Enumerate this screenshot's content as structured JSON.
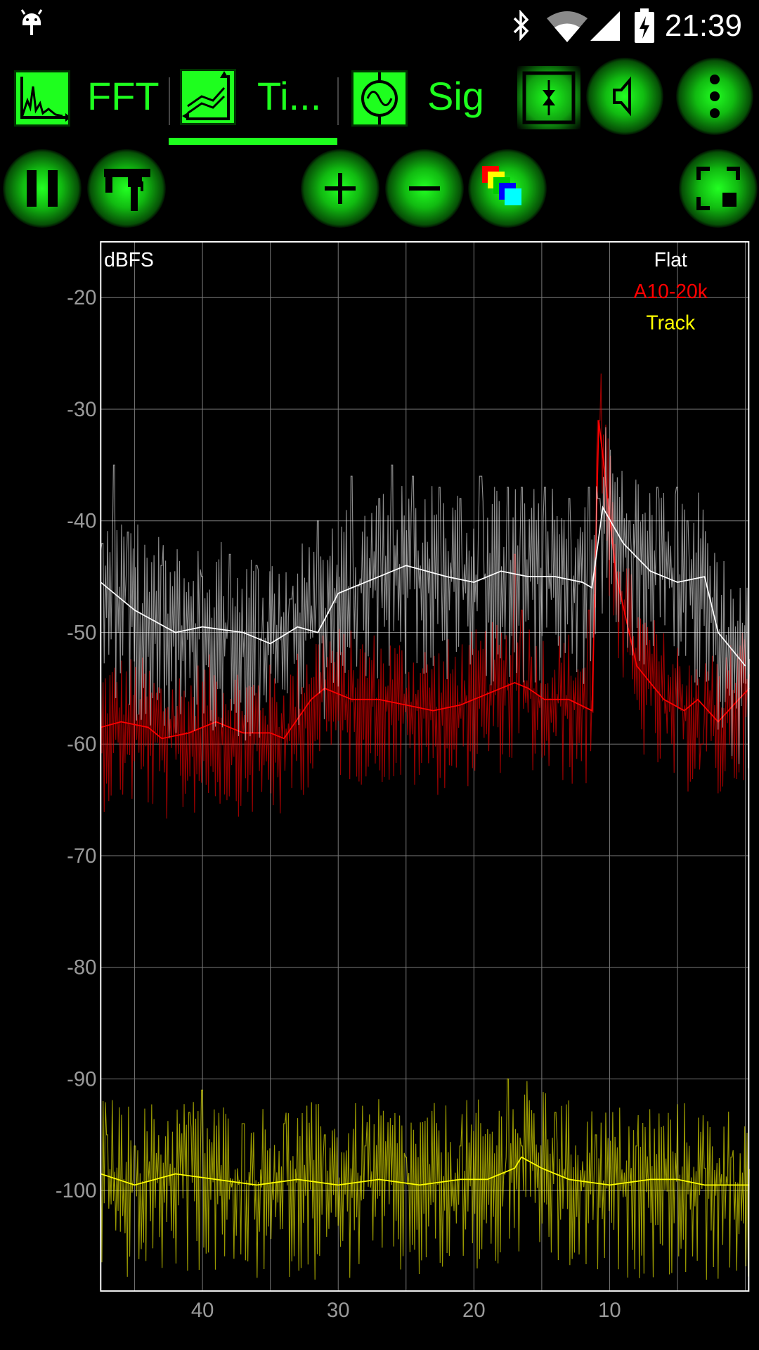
{
  "status_bar": {
    "time": "21:39",
    "icons": [
      "android-debug-icon",
      "bluetooth-icon",
      "wifi-icon",
      "signal-icon",
      "battery-charging-icon"
    ]
  },
  "tabs": [
    {
      "label": "FFT",
      "icon": "spectrum-icon"
    },
    {
      "label": "Ti...",
      "icon": "time-history-icon",
      "selected": true
    },
    {
      "label": "Sig",
      "icon": "signal-generator-icon"
    }
  ],
  "toolbar_icons": [
    "channel-swap-icon",
    "speaker-icon",
    "overflow-menu-icon"
  ],
  "controls": [
    "pause-icon",
    "caliper-icon",
    "zoom-in-icon",
    "zoom-out-icon",
    "color-palette-icon",
    "fullscreen-icon"
  ],
  "colors": {
    "accent": "#1eff1e",
    "flat_trace": "#ffffff",
    "a_weighted_trace": "#ff0000",
    "track_trace": "#ffff00",
    "grid": "#7a7a7a"
  },
  "chart_data": {
    "type": "line",
    "ylabel": "dBFS",
    "yticks": [
      "-20",
      "-30",
      "-40",
      "-50",
      "-60",
      "-70",
      "-80",
      "-90",
      "-100"
    ],
    "xticks": [
      "40",
      "30",
      "20",
      "10"
    ],
    "ylim": [
      -109,
      -15
    ],
    "xlim": [
      47.5,
      -0.3
    ],
    "grid": true,
    "legend_position": "top-right",
    "series": [
      {
        "name": "Flat",
        "color": "#ffffff",
        "average_points": [
          [
            47.5,
            -45.5
          ],
          [
            45,
            -48
          ],
          [
            42,
            -50
          ],
          [
            40,
            -49.5
          ],
          [
            37,
            -50
          ],
          [
            35,
            -51
          ],
          [
            33,
            -49.5
          ],
          [
            31.5,
            -50
          ],
          [
            30,
            -46.5
          ],
          [
            27,
            -45
          ],
          [
            25,
            -44
          ],
          [
            22,
            -45
          ],
          [
            20,
            -45.5
          ],
          [
            18,
            -44.5
          ],
          [
            16,
            -45
          ],
          [
            14,
            -45
          ],
          [
            12,
            -45.5
          ],
          [
            11.3,
            -46
          ],
          [
            10.5,
            -38.8
          ],
          [
            9,
            -42
          ],
          [
            7,
            -44.5
          ],
          [
            5,
            -45.5
          ],
          [
            3,
            -45
          ],
          [
            2,
            -50
          ],
          [
            0,
            -53
          ]
        ],
        "spikes": [
          [
            47.4,
            -42
          ],
          [
            46.5,
            -35
          ],
          [
            45.5,
            -41
          ],
          [
            43,
            -44
          ],
          [
            40,
            -45
          ],
          [
            38,
            -43
          ],
          [
            36,
            -44
          ],
          [
            33.5,
            -47
          ],
          [
            31.5,
            -40
          ],
          [
            29,
            -36
          ],
          [
            27,
            -38
          ],
          [
            26,
            -35
          ],
          [
            24.5,
            -36
          ],
          [
            22.5,
            -37
          ],
          [
            21,
            -38
          ],
          [
            19.5,
            -36
          ],
          [
            17.5,
            -37
          ],
          [
            16.5,
            -37
          ],
          [
            14.8,
            -37
          ],
          [
            13,
            -38
          ],
          [
            11.5,
            -37
          ],
          [
            10.8,
            -38
          ],
          [
            8.5,
            -40
          ],
          [
            6.5,
            -37
          ],
          [
            5,
            -37
          ],
          [
            4.3,
            -40
          ]
        ]
      },
      {
        "name": "A10-20k",
        "color": "#ff0000",
        "average_points": [
          [
            47.5,
            -58.5
          ],
          [
            46,
            -58
          ],
          [
            44,
            -58.5
          ],
          [
            43,
            -59.5
          ],
          [
            41,
            -59
          ],
          [
            39,
            -58
          ],
          [
            37,
            -59
          ],
          [
            35,
            -59
          ],
          [
            34,
            -59.5
          ],
          [
            32,
            -56
          ],
          [
            31,
            -55
          ],
          [
            29,
            -56
          ],
          [
            27,
            -56
          ],
          [
            25,
            -56.5
          ],
          [
            23,
            -57
          ],
          [
            21,
            -56.5
          ],
          [
            19,
            -55.5
          ],
          [
            17,
            -54.5
          ],
          [
            16,
            -55
          ],
          [
            14.8,
            -56
          ],
          [
            13,
            -56
          ],
          [
            11.3,
            -57
          ],
          [
            10.8,
            -31
          ],
          [
            9.5,
            -45
          ],
          [
            8,
            -53
          ],
          [
            6,
            -56
          ],
          [
            4.5,
            -57
          ],
          [
            3.5,
            -56
          ],
          [
            2,
            -58
          ],
          [
            0.5,
            -56
          ],
          [
            -0.3,
            -55
          ]
        ],
        "spikes": [
          [
            17,
            -43
          ],
          [
            16.5,
            -48
          ],
          [
            11.5,
            -48
          ],
          [
            10.8,
            -31
          ],
          [
            3.2,
            -60
          ]
        ]
      },
      {
        "name": "Track",
        "color": "#ffff00",
        "average_points": [
          [
            47.5,
            -98.5
          ],
          [
            45,
            -99.5
          ],
          [
            42,
            -98.5
          ],
          [
            39,
            -99
          ],
          [
            36,
            -99.5
          ],
          [
            33,
            -99
          ],
          [
            30,
            -99.5
          ],
          [
            27,
            -99
          ],
          [
            24,
            -99.5
          ],
          [
            21,
            -99
          ],
          [
            19,
            -99
          ],
          [
            17,
            -98
          ],
          [
            16.5,
            -97
          ],
          [
            15,
            -98
          ],
          [
            13,
            -99
          ],
          [
            10,
            -99.5
          ],
          [
            7,
            -99
          ],
          [
            5,
            -99
          ],
          [
            3,
            -99.5
          ],
          [
            1,
            -99.5
          ],
          [
            -0.3,
            -99.5
          ]
        ],
        "spikes": [
          [
            47,
            -95
          ],
          [
            45,
            -96
          ],
          [
            41,
            -93
          ],
          [
            40,
            -91
          ],
          [
            37,
            -94
          ],
          [
            34,
            -94
          ],
          [
            31,
            -95
          ],
          [
            28,
            -96
          ],
          [
            25,
            -97
          ],
          [
            21,
            -96
          ],
          [
            17.5,
            -90
          ],
          [
            16.5,
            -96
          ],
          [
            14,
            -93
          ],
          [
            11,
            -95
          ],
          [
            8,
            -96
          ],
          [
            3,
            -98
          ],
          [
            1,
            -97
          ]
        ]
      }
    ]
  }
}
